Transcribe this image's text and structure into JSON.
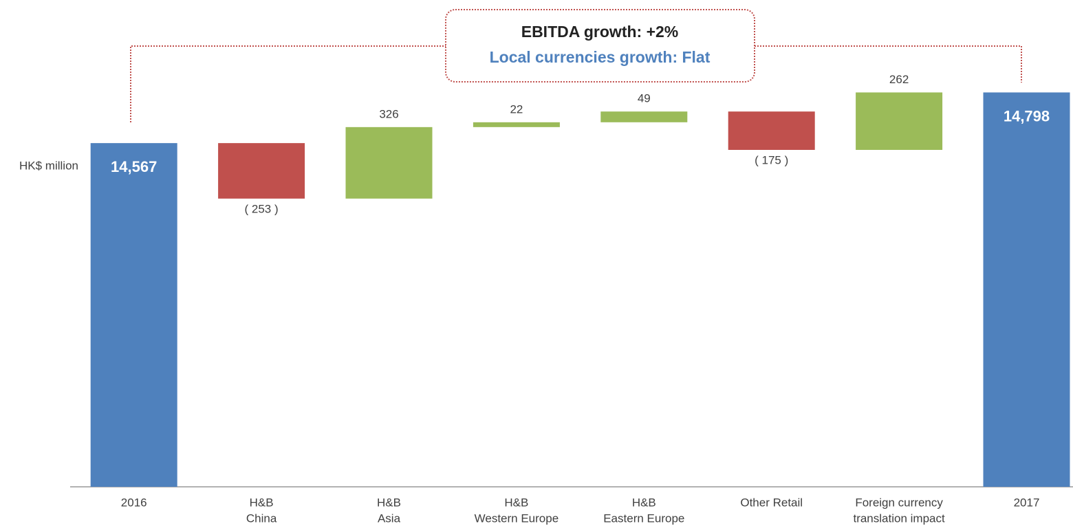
{
  "chart_data": {
    "type": "waterfall",
    "y_label": "HK$ million",
    "annotations": [
      "EBITDA growth: +2%",
      "Local currencies growth:  Flat"
    ],
    "categories": [
      [
        "2016"
      ],
      [
        "H&B",
        "China"
      ],
      [
        "H&B",
        "Asia"
      ],
      [
        "H&B",
        "Western Europe"
      ],
      [
        "H&B",
        "Eastern Europe"
      ],
      [
        "Other Retail"
      ],
      [
        "Foreign currency",
        "translation impact"
      ],
      [
        "2017"
      ]
    ],
    "values": [
      14567,
      -253,
      326,
      22,
      49,
      -175,
      262,
      14798
    ],
    "value_labels": [
      "14,567",
      "( 253 )",
      "326",
      "22",
      "49",
      "( 175 )",
      "262",
      "14,798"
    ],
    "colors": {
      "total": "#4f81bd",
      "increase": "#9bbb59",
      "decrease": "#c0504d"
    },
    "ylim": [
      13000,
      15000
    ]
  }
}
